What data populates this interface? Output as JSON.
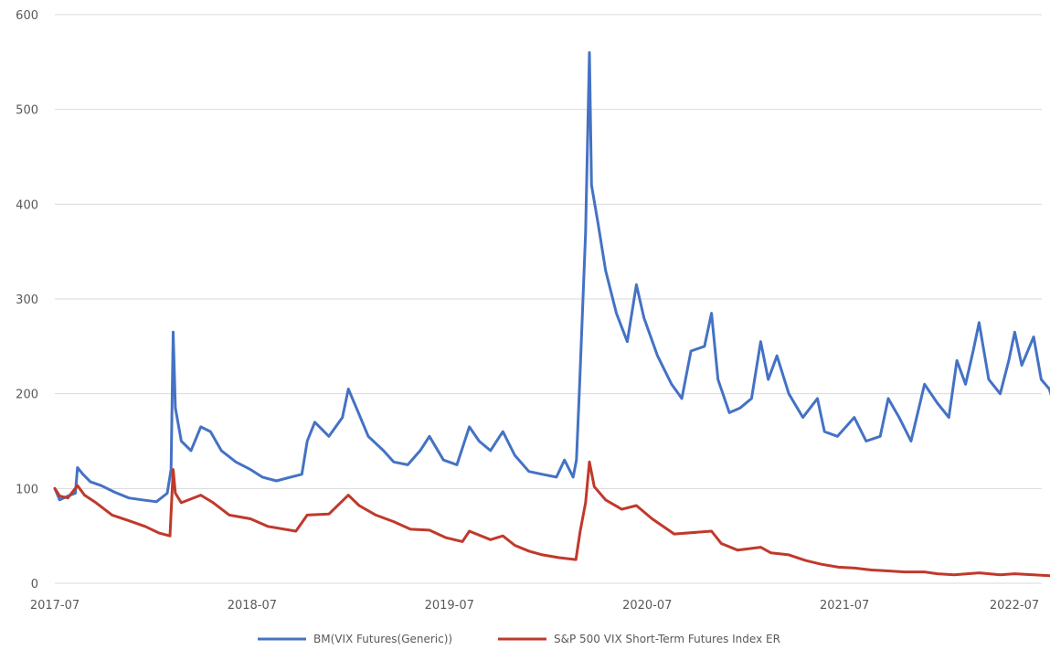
{
  "chart_data": {
    "type": "line",
    "title": "",
    "xlabel": "",
    "ylabel": "",
    "ylim": [
      0,
      600
    ],
    "xlim": [
      "2017-07",
      "2022-07"
    ],
    "yticks": [
      "0",
      "100",
      "200",
      "300",
      "400",
      "500",
      "600"
    ],
    "xticks": [
      "2017-07",
      "2018-07",
      "2019-07",
      "2020-07",
      "2021-07",
      "2022-07"
    ],
    "grid": "horizontal",
    "legend": "bottom",
    "series": [
      {
        "name": "BM(VIX Futures(Generic))",
        "color": "#4472C4",
        "points": [
          [
            "2017-07-01",
            100
          ],
          [
            "2017-07-10",
            88
          ],
          [
            "2017-07-25",
            92
          ],
          [
            "2017-08-08",
            95
          ],
          [
            "2017-08-12",
            122
          ],
          [
            "2017-08-22",
            115
          ],
          [
            "2017-09-05",
            107
          ],
          [
            "2017-09-25",
            103
          ],
          [
            "2017-10-20",
            96
          ],
          [
            "2017-11-15",
            90
          ],
          [
            "2017-12-10",
            88
          ],
          [
            "2018-01-05",
            86
          ],
          [
            "2018-01-25",
            95
          ],
          [
            "2018-02-01",
            120
          ],
          [
            "2018-02-05",
            265
          ],
          [
            "2018-02-09",
            185
          ],
          [
            "2018-02-20",
            150
          ],
          [
            "2018-03-10",
            140
          ],
          [
            "2018-03-28",
            165
          ],
          [
            "2018-04-15",
            160
          ],
          [
            "2018-05-05",
            140
          ],
          [
            "2018-06-01",
            128
          ],
          [
            "2018-06-28",
            120
          ],
          [
            "2018-07-20",
            112
          ],
          [
            "2018-08-15",
            108
          ],
          [
            "2018-09-10",
            112
          ],
          [
            "2018-10-01",
            115
          ],
          [
            "2018-10-11",
            150
          ],
          [
            "2018-10-25",
            170
          ],
          [
            "2018-11-20",
            155
          ],
          [
            "2018-12-15",
            175
          ],
          [
            "2018-12-26",
            205
          ],
          [
            "2019-01-10",
            185
          ],
          [
            "2019-02-01",
            155
          ],
          [
            "2019-03-01",
            140
          ],
          [
            "2019-03-20",
            128
          ],
          [
            "2019-04-15",
            125
          ],
          [
            "2019-05-08",
            140
          ],
          [
            "2019-05-25",
            155
          ],
          [
            "2019-06-20",
            130
          ],
          [
            "2019-07-15",
            125
          ],
          [
            "2019-08-07",
            165
          ],
          [
            "2019-08-25",
            150
          ],
          [
            "2019-09-15",
            140
          ],
          [
            "2019-10-08",
            160
          ],
          [
            "2019-10-30",
            135
          ],
          [
            "2019-11-25",
            118
          ],
          [
            "2019-12-20",
            115
          ],
          [
            "2020-01-15",
            112
          ],
          [
            "2020-01-30",
            130
          ],
          [
            "2020-02-15",
            112
          ],
          [
            "2020-02-21",
            130
          ],
          [
            "2020-02-27",
            210
          ],
          [
            "2020-03-09",
            370
          ],
          [
            "2020-03-16",
            560
          ],
          [
            "2020-03-20",
            420
          ],
          [
            "2020-04-01",
            380
          ],
          [
            "2020-04-15",
            330
          ],
          [
            "2020-05-05",
            285
          ],
          [
            "2020-05-25",
            255
          ],
          [
            "2020-06-11",
            315
          ],
          [
            "2020-06-25",
            280
          ],
          [
            "2020-07-20",
            240
          ],
          [
            "2020-08-15",
            210
          ],
          [
            "2020-09-03",
            195
          ],
          [
            "2020-09-20",
            245
          ],
          [
            "2020-10-15",
            250
          ],
          [
            "2020-10-28",
            285
          ],
          [
            "2020-11-09",
            215
          ],
          [
            "2020-11-30",
            180
          ],
          [
            "2020-12-20",
            185
          ],
          [
            "2021-01-10",
            195
          ],
          [
            "2021-01-27",
            255
          ],
          [
            "2021-02-10",
            215
          ],
          [
            "2021-02-26",
            240
          ],
          [
            "2021-03-20",
            200
          ],
          [
            "2021-04-15",
            175
          ],
          [
            "2021-05-12",
            195
          ],
          [
            "2021-05-25",
            160
          ],
          [
            "2021-06-18",
            155
          ],
          [
            "2021-07-19",
            175
          ],
          [
            "2021-08-10",
            150
          ],
          [
            "2021-09-05",
            155
          ],
          [
            "2021-09-20",
            195
          ],
          [
            "2021-10-10",
            175
          ],
          [
            "2021-11-01",
            150
          ],
          [
            "2021-11-26",
            210
          ],
          [
            "2021-12-20",
            190
          ],
          [
            "2022-01-10",
            175
          ],
          [
            "2022-01-25",
            235
          ],
          [
            "2022-02-10",
            210
          ],
          [
            "2022-02-24",
            245
          ],
          [
            "2022-03-07",
            275
          ],
          [
            "2022-03-25",
            215
          ],
          [
            "2022-04-15",
            200
          ],
          [
            "2022-05-01",
            235
          ],
          [
            "2022-05-12",
            265
          ],
          [
            "2022-05-25",
            230
          ],
          [
            "2022-06-16",
            260
          ],
          [
            "2022-06-30",
            215
          ],
          [
            "2022-07-15",
            205
          ],
          [
            "2022-07-25",
            185
          ],
          [
            "2022-08-01",
            188
          ]
        ]
      },
      {
        "name": "S&P 500 VIX Short-Term Futures Index ER",
        "color": "#C0392B",
        "points": [
          [
            "2017-07-01",
            100
          ],
          [
            "2017-07-10",
            92
          ],
          [
            "2017-07-25",
            90
          ],
          [
            "2017-08-12",
            103
          ],
          [
            "2017-08-25",
            93
          ],
          [
            "2017-09-15",
            85
          ],
          [
            "2017-10-15",
            72
          ],
          [
            "2017-11-15",
            66
          ],
          [
            "2017-12-15",
            60
          ],
          [
            "2018-01-10",
            53
          ],
          [
            "2018-01-30",
            50
          ],
          [
            "2018-02-05",
            120
          ],
          [
            "2018-02-09",
            95
          ],
          [
            "2018-02-20",
            85
          ],
          [
            "2018-03-28",
            93
          ],
          [
            "2018-04-20",
            85
          ],
          [
            "2018-05-20",
            72
          ],
          [
            "2018-06-28",
            68
          ],
          [
            "2018-07-30",
            60
          ],
          [
            "2018-09-20",
            55
          ],
          [
            "2018-10-11",
            72
          ],
          [
            "2018-11-20",
            73
          ],
          [
            "2018-12-26",
            93
          ],
          [
            "2019-01-15",
            82
          ],
          [
            "2019-02-15",
            72
          ],
          [
            "2019-03-20",
            65
          ],
          [
            "2019-04-20",
            57
          ],
          [
            "2019-05-25",
            56
          ],
          [
            "2019-06-25",
            48
          ],
          [
            "2019-07-25",
            44
          ],
          [
            "2019-08-07",
            55
          ],
          [
            "2019-09-15",
            46
          ],
          [
            "2019-10-08",
            50
          ],
          [
            "2019-10-30",
            40
          ],
          [
            "2019-11-25",
            34
          ],
          [
            "2019-12-20",
            30
          ],
          [
            "2020-01-20",
            27
          ],
          [
            "2020-02-20",
            25
          ],
          [
            "2020-02-28",
            55
          ],
          [
            "2020-03-09",
            85
          ],
          [
            "2020-03-16",
            128
          ],
          [
            "2020-03-25",
            102
          ],
          [
            "2020-04-15",
            88
          ],
          [
            "2020-05-15",
            78
          ],
          [
            "2020-06-11",
            82
          ],
          [
            "2020-07-10",
            68
          ],
          [
            "2020-08-20",
            52
          ],
          [
            "2020-10-28",
            55
          ],
          [
            "2020-11-15",
            42
          ],
          [
            "2020-12-15",
            35
          ],
          [
            "2021-01-27",
            38
          ],
          [
            "2021-02-15",
            32
          ],
          [
            "2021-03-20",
            30
          ],
          [
            "2021-04-20",
            24
          ],
          [
            "2021-05-20",
            20
          ],
          [
            "2021-06-20",
            17
          ],
          [
            "2021-07-20",
            16
          ],
          [
            "2021-08-20",
            14
          ],
          [
            "2021-09-20",
            13
          ],
          [
            "2021-10-20",
            12
          ],
          [
            "2021-11-26",
            12
          ],
          [
            "2021-12-20",
            10
          ],
          [
            "2022-01-20",
            9
          ],
          [
            "2022-03-07",
            11
          ],
          [
            "2022-04-15",
            9
          ],
          [
            "2022-05-12",
            10
          ],
          [
            "2022-06-16",
            9
          ],
          [
            "2022-07-15",
            8
          ],
          [
            "2022-08-01",
            7
          ]
        ]
      }
    ]
  }
}
